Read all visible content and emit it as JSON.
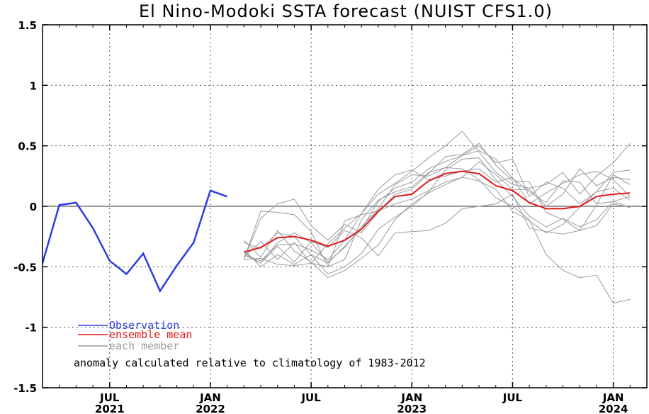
{
  "chart_data": {
    "type": "line",
    "title": "El Nino-Modoki SSTA forecast (NUIST CFS1.0)",
    "xlabel": "",
    "ylabel": "",
    "ylim": [
      -1.5,
      1.5
    ],
    "yticks": [
      1.5,
      1,
      0.5,
      0,
      -0.5,
      -1,
      -1.5
    ],
    "ytick_labels": [
      "1.5",
      "1",
      "0.5",
      "0",
      "-0.5",
      "-1",
      "-1.5"
    ],
    "xlim": [
      "2021-03",
      "2024-03"
    ],
    "xticks": [
      {
        "date": "2021-07",
        "month": "JUL",
        "year": "2021"
      },
      {
        "date": "2022-01",
        "month": "JAN",
        "year": "2022"
      },
      {
        "date": "2022-07",
        "month": "JUL",
        "year": ""
      },
      {
        "date": "2023-01",
        "month": "JAN",
        "year": "2023"
      },
      {
        "date": "2023-07",
        "month": "JUL",
        "year": ""
      },
      {
        "date": "2024-01",
        "month": "JAN",
        "year": "2024"
      }
    ],
    "grid": true,
    "zero_line": true,
    "legend_position": "bottom-left",
    "note": "anomaly calculated relative to climatology of 1983-2012",
    "series": [
      {
        "name": "Observation",
        "color": "#2b3de0",
        "x": [
          "2021-03",
          "2021-04",
          "2021-05",
          "2021-06",
          "2021-07",
          "2021-08",
          "2021-09",
          "2021-10",
          "2021-11",
          "2021-12",
          "2022-01",
          "2022-02"
        ],
        "values": [
          -0.47,
          0.01,
          0.03,
          -0.18,
          -0.45,
          -0.56,
          -0.39,
          -0.7,
          -0.49,
          -0.3,
          0.13,
          0.08
        ]
      },
      {
        "name": "ensemble mean",
        "color": "#e01818",
        "x": [
          "2022-03",
          "2022-04",
          "2022-05",
          "2022-06",
          "2022-07",
          "2022-08",
          "2022-09",
          "2022-10",
          "2022-11",
          "2022-12",
          "2023-01",
          "2023-02",
          "2023-03",
          "2023-04",
          "2023-05",
          "2023-06",
          "2023-07",
          "2023-08",
          "2023-09",
          "2023-10",
          "2023-11",
          "2023-12",
          "2024-01",
          "2024-02"
        ],
        "values": [
          -0.38,
          -0.34,
          -0.26,
          -0.25,
          -0.28,
          -0.33,
          -0.28,
          -0.19,
          -0.04,
          0.08,
          0.1,
          0.21,
          0.27,
          0.29,
          0.27,
          0.17,
          0.13,
          0.03,
          -0.02,
          -0.02,
          0.0,
          0.08,
          0.1,
          0.11
        ]
      },
      {
        "name": "each member",
        "color": "#9b9b9b",
        "x_start": "2022-03",
        "members": [
          [
            -0.3,
            -0.35,
            -0.22,
            -0.25,
            -0.4,
            -0.47,
            -0.33,
            -0.19,
            0.04,
            0.15,
            0.2,
            0.31,
            0.37,
            0.42,
            0.5,
            0.36,
            0.39,
            0.08,
            0.2,
            0.15,
            0.02,
            0.12,
            0.28,
            0.3
          ],
          [
            -0.42,
            -0.29,
            -0.44,
            -0.3,
            -0.47,
            -0.31,
            -0.18,
            -0.06,
            0.1,
            0.19,
            0.29,
            0.4,
            0.5,
            0.62,
            0.45,
            0.28,
            0.18,
            0.15,
            0.18,
            0.28,
            0.1,
            0.25,
            0.36,
            0.52
          ],
          [
            -0.44,
            -0.1,
            0.02,
            0.06,
            -0.16,
            -0.28,
            -0.15,
            -0.22,
            -0.05,
            0.1,
            0.14,
            0.27,
            0.41,
            0.43,
            0.52,
            0.34,
            0.21,
            0.2,
            -0.05,
            -0.11,
            -0.2,
            0.01,
            0.26,
            0.18
          ],
          [
            -0.36,
            -0.5,
            -0.4,
            -0.48,
            -0.4,
            -0.56,
            -0.5,
            -0.39,
            -0.19,
            -0.09,
            0.0,
            0.12,
            0.3,
            0.39,
            0.4,
            0.22,
            0.08,
            -0.08,
            -0.17,
            -0.1,
            -0.17,
            -0.11,
            0.04,
            0.08
          ],
          [
            -0.28,
            -0.42,
            -0.2,
            -0.37,
            -0.46,
            -0.59,
            -0.53,
            -0.43,
            -0.32,
            -0.11,
            0.02,
            0.11,
            0.18,
            0.24,
            0.21,
            0.14,
            -0.04,
            -0.12,
            -0.22,
            -0.15,
            -0.01,
            0.12,
            0.15,
            0.05
          ],
          [
            -0.44,
            -0.04,
            -0.05,
            -0.07,
            -0.21,
            -0.5,
            -0.44,
            -0.11,
            0.05,
            0.12,
            0.16,
            0.28,
            0.32,
            0.31,
            0.22,
            0.07,
            0.0,
            -0.11,
            -0.4,
            -0.53,
            -0.59,
            -0.57,
            -0.8,
            -0.77
          ],
          [
            -0.38,
            -0.47,
            -0.3,
            -0.22,
            -0.3,
            -0.46,
            -0.34,
            -0.17,
            -0.02,
            0.18,
            0.26,
            0.25,
            0.32,
            0.42,
            0.46,
            0.39,
            0.23,
            0.12,
            0.03,
            0.21,
            0.2,
            0.02,
            0.04,
            -0.01
          ],
          [
            -0.4,
            -0.47,
            -0.33,
            -0.46,
            -0.29,
            -0.34,
            -0.2,
            -0.26,
            -0.41,
            -0.22,
            -0.21,
            -0.2,
            -0.14,
            -0.02,
            0.0,
            0.02,
            0.1,
            -0.18,
            -0.21,
            -0.23,
            -0.2,
            -0.16,
            0.02,
            -0.01
          ],
          [
            -0.44,
            -0.43,
            -0.48,
            -0.49,
            -0.47,
            -0.5,
            -0.12,
            -0.07,
            -0.04,
            0.02,
            0.06,
            0.13,
            0.2,
            0.24,
            0.37,
            0.26,
            0.14,
            0.14,
            0.0,
            0.1,
            0.31,
            0.17,
            0.24,
            0.22
          ],
          [
            -0.4,
            -0.45,
            -0.32,
            -0.31,
            -0.36,
            -0.44,
            -0.28,
            -0.06,
            0.14,
            0.26,
            0.3,
            0.22,
            0.25,
            0.29,
            0.31,
            0.2,
            0.24,
            0.02,
            0.11,
            0.19,
            0.26,
            0.29,
            0.22,
            0.08
          ]
        ]
      }
    ]
  }
}
